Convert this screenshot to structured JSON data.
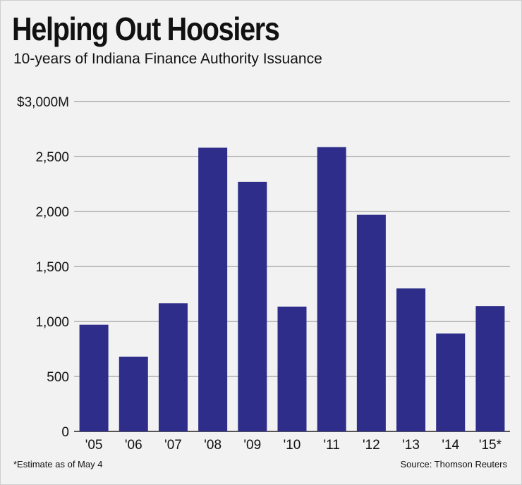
{
  "chart_data": {
    "type": "bar",
    "title": "Helping Out Hoosiers",
    "subtitle": "10-years of Indiana Finance Authority Issuance",
    "categories": [
      "'05",
      "'06",
      "'07",
      "'08",
      "'09",
      "'10",
      "'11",
      "'12",
      "'13",
      "'14",
      "'15*"
    ],
    "values": [
      970,
      680,
      1165,
      2580,
      2270,
      1135,
      2585,
      1970,
      1300,
      890,
      1140
    ],
    "ylim": [
      0,
      3000
    ],
    "yticks": [
      0,
      500,
      1000,
      1500,
      2000,
      2500,
      3000
    ],
    "ytick_labels": [
      "0",
      "500",
      "1,000",
      "1,500",
      "2,000",
      "2,500",
      "$3,000M"
    ],
    "grid": true,
    "bar_color": "#2e2e8a",
    "footnote": "*Estimate as of May 4",
    "source": "Source: Thomson Reuters"
  }
}
